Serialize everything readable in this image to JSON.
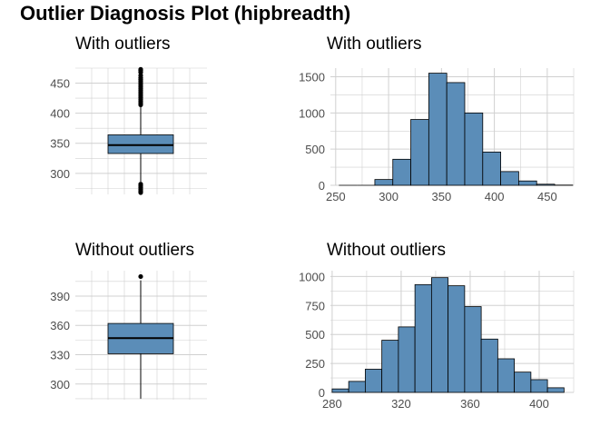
{
  "title": "Outlier Diagnosis Plot (hipbreadth)",
  "panels": {
    "box_with": {
      "title": "With outliers"
    },
    "hist_with": {
      "title": "With outliers"
    },
    "box_without": {
      "title": "Without outliers"
    },
    "hist_without": {
      "title": "Without outliers"
    }
  },
  "colors": {
    "fill": "#5b8db8",
    "grid": "#d0d0d0",
    "outline": "#000000"
  },
  "chart_data": [
    {
      "type": "box",
      "title": "With outliers",
      "ylim": [
        265,
        475
      ],
      "yticks": [
        300,
        350,
        400,
        450
      ],
      "stats": {
        "q1": 333,
        "median": 347,
        "q3": 364,
        "whisker_low": 286,
        "whisker_high": 412
      },
      "outliers": [
        268,
        270,
        273,
        276,
        279,
        282,
        414,
        417,
        420,
        423,
        426,
        429,
        432,
        435,
        438,
        441,
        444,
        447,
        450,
        453,
        456,
        459,
        463,
        468,
        471,
        473
      ]
    },
    {
      "type": "bar",
      "title": "With outliers",
      "xlim": [
        245,
        475
      ],
      "ylim": [
        0,
        1620
      ],
      "xticks": [
        250,
        300,
        350,
        400,
        450
      ],
      "yticks": [
        0,
        500,
        1000,
        1500
      ],
      "bin_width": 17,
      "bins": [
        {
          "x0": 253,
          "count": 0
        },
        {
          "x0": 270,
          "count": 0
        },
        {
          "x0": 287,
          "count": 80
        },
        {
          "x0": 304,
          "count": 360
        },
        {
          "x0": 321,
          "count": 910
        },
        {
          "x0": 338,
          "count": 1550
        },
        {
          "x0": 355,
          "count": 1420
        },
        {
          "x0": 372,
          "count": 1000
        },
        {
          "x0": 389,
          "count": 460
        },
        {
          "x0": 406,
          "count": 190
        },
        {
          "x0": 423,
          "count": 60
        },
        {
          "x0": 440,
          "count": 15
        },
        {
          "x0": 457,
          "count": 3
        }
      ]
    },
    {
      "type": "box",
      "title": "Without outliers",
      "ylim": [
        284,
        416
      ],
      "yticks": [
        300,
        330,
        360,
        390
      ],
      "stats": {
        "q1": 331,
        "median": 347,
        "q3": 362,
        "whisker_low": 285,
        "whisker_high": 406
      },
      "outliers": [
        410
      ]
    },
    {
      "type": "bar",
      "title": "Without outliers",
      "xlim": [
        279,
        420
      ],
      "ylim": [
        0,
        1050
      ],
      "xticks": [
        280,
        320,
        360,
        400
      ],
      "yticks": [
        0,
        250,
        500,
        750,
        1000
      ],
      "bin_width": 9.6,
      "bins": [
        {
          "x0": 280,
          "count": 30
        },
        {
          "x0": 289.6,
          "count": 95
        },
        {
          "x0": 299.2,
          "count": 200
        },
        {
          "x0": 308.8,
          "count": 450
        },
        {
          "x0": 318.4,
          "count": 565
        },
        {
          "x0": 328,
          "count": 930
        },
        {
          "x0": 337.6,
          "count": 990
        },
        {
          "x0": 347.2,
          "count": 920
        },
        {
          "x0": 356.8,
          "count": 740
        },
        {
          "x0": 366.4,
          "count": 460
        },
        {
          "x0": 376,
          "count": 290
        },
        {
          "x0": 385.6,
          "count": 175
        },
        {
          "x0": 395.2,
          "count": 110
        },
        {
          "x0": 404.8,
          "count": 40
        }
      ]
    }
  ]
}
